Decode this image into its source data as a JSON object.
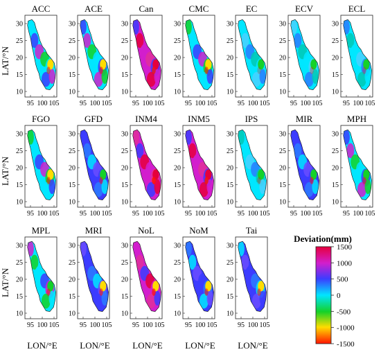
{
  "chart_data": {
    "type": "heatmap",
    "description_type": "small-multiple spatial deviation maps",
    "panels": [
      {
        "title": "ACC",
        "dominant": "mixed",
        "hot": 0.55
      },
      {
        "title": "ACE",
        "dominant": "mixed",
        "hot": 0.6
      },
      {
        "title": "Can",
        "dominant": "magenta",
        "hot": 0.75
      },
      {
        "title": "CMC",
        "dominant": "mixed",
        "hot": 0.6
      },
      {
        "title": "EC",
        "dominant": "cyan",
        "hot": 0.25
      },
      {
        "title": "ECV",
        "dominant": "cyan",
        "hot": 0.3
      },
      {
        "title": "ECL",
        "dominant": "cyan",
        "hot": 0.3
      },
      {
        "title": "FGO",
        "dominant": "mixed",
        "hot": 0.55
      },
      {
        "title": "GFD",
        "dominant": "blue",
        "hot": 0.45
      },
      {
        "title": "INM4",
        "dominant": "magenta",
        "hot": 0.85
      },
      {
        "title": "INM5",
        "dominant": "magenta",
        "hot": 0.85
      },
      {
        "title": "IPS",
        "dominant": "cyan",
        "hot": 0.3
      },
      {
        "title": "MIR",
        "dominant": "blue",
        "hot": 0.5
      },
      {
        "title": "MPH",
        "dominant": "mixed",
        "hot": 0.5
      },
      {
        "title": "MPL",
        "dominant": "mixed",
        "hot": 0.5
      },
      {
        "title": "MRI",
        "dominant": "blue",
        "hot": 0.55
      },
      {
        "title": "NoL",
        "dominant": "magenta",
        "hot": 0.7
      },
      {
        "title": "NoM",
        "dominant": "blue",
        "hot": 0.55
      },
      {
        "title": "Tai",
        "dominant": "blue",
        "hot": 0.55
      }
    ],
    "x_ticks": [
      "95",
      "100",
      "105"
    ],
    "y_ticks": [
      "30",
      "25",
      "20",
      "15",
      "10"
    ],
    "ylabel": "LAT/°N",
    "xlabel": "LON/°E",
    "colorbar": {
      "title": "Deviation(mm)",
      "range": [
        -1500,
        1500
      ],
      "ticks": [
        "1500",
        "1000",
        "500",
        "0",
        "-500",
        "-1000",
        "-1500"
      ],
      "colors": [
        "#e6003c",
        "#d21ecd",
        "#3c3cff",
        "#00e6ff",
        "#14d228",
        "#ffdc00",
        "#ff1400"
      ]
    }
  }
}
